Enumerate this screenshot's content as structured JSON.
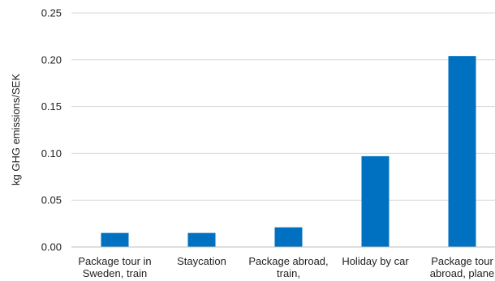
{
  "chart_data": {
    "type": "bar",
    "categories": [
      [
        "Package tour in",
        "Sweden, train"
      ],
      [
        "Staycation"
      ],
      [
        "Package abroad,",
        "train,"
      ],
      [
        "Holiday by car"
      ],
      [
        "Package tour",
        "abroad, plane"
      ]
    ],
    "values": [
      0.015,
      0.015,
      0.021,
      0.097,
      0.204
    ],
    "title": "",
    "xlabel": "",
    "ylabel": "kg GHG emissions/SEK",
    "ylim": [
      0,
      0.25
    ],
    "yticks": [
      "0.00",
      "0.05",
      "0.10",
      "0.15",
      "0.20",
      "0.25"
    ],
    "bar_color": "#0070C0",
    "grid": true,
    "legend": "none"
  }
}
